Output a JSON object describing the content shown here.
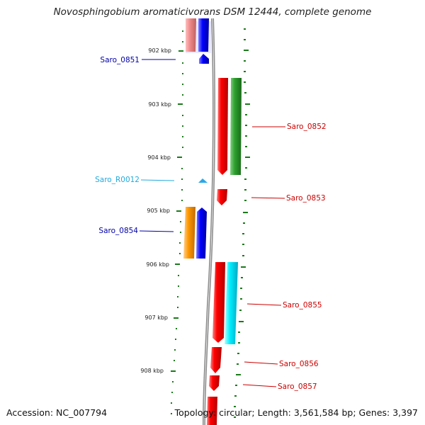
{
  "title": "Novosphingobium aromaticivorans DSM 12444, complete genome",
  "footer": {
    "accession": "Accession: NC_007794",
    "topology": "Topology: circular; Length: 3,561,584 bp; Genes: 3,397"
  },
  "colors": {
    "backbone": "#8c8c8c",
    "tick": "#1a7a1a",
    "forward_label": "#cc0000",
    "reverse_label": "#0000aa",
    "rna_label": "#22aadd"
  },
  "ruler": {
    "ticks": [
      "902 kbp",
      "903 kbp",
      "904 kbp",
      "905 kbp",
      "906 kbp",
      "907 kbp",
      "908 kbp"
    ]
  },
  "labels": {
    "saro_0851": "Saro_0851",
    "saro_0852": "Saro_0852",
    "saro_r0012": "Saro_R0012",
    "saro_0853": "Saro_0853",
    "saro_0854": "Saro_0854",
    "saro_0855": "Saro_0855",
    "saro_0856": "Saro_0856",
    "saro_0857": "Saro_0857"
  }
}
